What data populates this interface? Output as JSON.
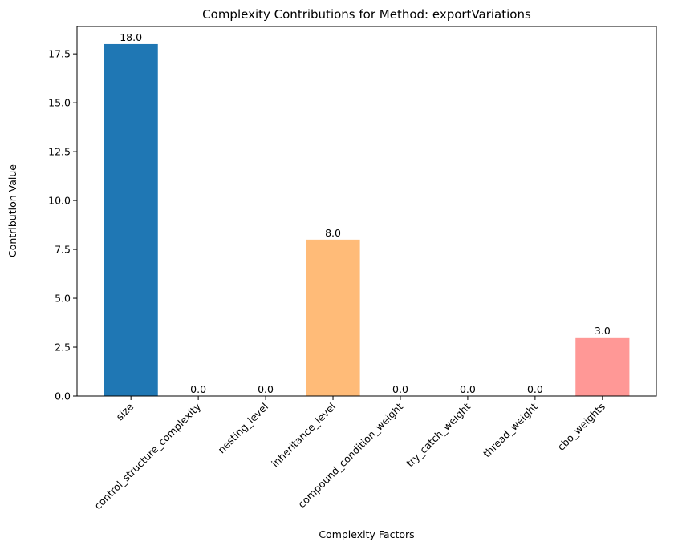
{
  "chart_data": {
    "type": "bar",
    "title": "Complexity Contributions for Method: exportVariations",
    "xlabel": "Complexity Factors",
    "ylabel": "Contribution Value",
    "categories": [
      "size",
      "control_structure_complexity",
      "nesting_level",
      "inheritance_level",
      "compound_condition_weight",
      "try_catch_weight",
      "thread_weight",
      "cbo_weights"
    ],
    "values": [
      18.0,
      0.0,
      0.0,
      8.0,
      0.0,
      0.0,
      0.0,
      3.0
    ],
    "data_labels": [
      "18.0",
      "0.0",
      "0.0",
      "8.0",
      "0.0",
      "0.0",
      "0.0",
      "3.0"
    ],
    "colors": [
      "#1f77b4",
      "#aec7e8",
      "#ff7f0e",
      "#ffbb78",
      "#2ca02c",
      "#98df8a",
      "#d62728",
      "#ff9896"
    ],
    "ylim": [
      0,
      18.9
    ],
    "yticks": [
      0.0,
      2.5,
      5.0,
      7.5,
      10.0,
      12.5,
      15.0,
      17.5
    ],
    "ytick_labels": [
      "0.0",
      "2.5",
      "5.0",
      "7.5",
      "10.0",
      "12.5",
      "15.0",
      "17.5"
    ],
    "grid": false,
    "legend": "none"
  }
}
